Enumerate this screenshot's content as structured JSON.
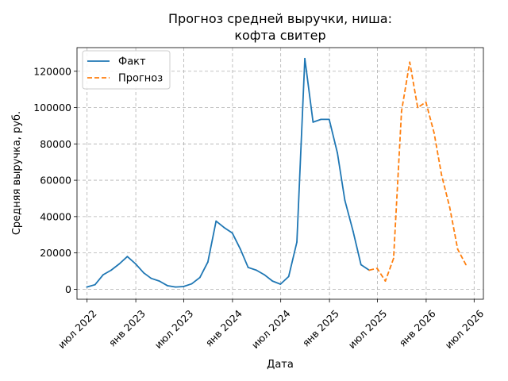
{
  "chart_data": {
    "type": "line",
    "title_lines": [
      "Прогноз средней выручки, ниша:",
      "кофта свитер"
    ],
    "xlabel": "Дата",
    "ylabel": "Средняя выручка, руб.",
    "x_ticks": [
      {
        "date": "2022-07-01",
        "label": "июл 2022"
      },
      {
        "date": "2023-01-01",
        "label": "янв 2023"
      },
      {
        "date": "2023-07-01",
        "label": "июл 2023"
      },
      {
        "date": "2024-01-01",
        "label": "янв 2024"
      },
      {
        "date": "2024-07-01",
        "label": "июл 2024"
      },
      {
        "date": "2025-01-01",
        "label": "янв 2025"
      },
      {
        "date": "2025-07-01",
        "label": "июл 2025"
      },
      {
        "date": "2026-01-01",
        "label": "янв 2026"
      },
      {
        "date": "2026-07-01",
        "label": "июл 2026"
      }
    ],
    "y_ticks": [
      0,
      20000,
      40000,
      60000,
      80000,
      100000,
      120000
    ],
    "xlim": [
      "2022-05-24",
      "2026-08-05"
    ],
    "ylim": [
      -5500,
      133000
    ],
    "grid": true,
    "legend_position": "top-left",
    "series": [
      {
        "name": "Факт",
        "color": "#1f77b4",
        "style": "solid",
        "points": [
          {
            "x": "2022-06-30",
            "y": 1200
          },
          {
            "x": "2022-07-31",
            "y": 2500
          },
          {
            "x": "2022-08-31",
            "y": 8000
          },
          {
            "x": "2022-09-30",
            "y": 10500
          },
          {
            "x": "2022-10-31",
            "y": 14000
          },
          {
            "x": "2022-11-30",
            "y": 18000
          },
          {
            "x": "2022-12-31",
            "y": 14000
          },
          {
            "x": "2023-01-31",
            "y": 9000
          },
          {
            "x": "2023-02-28",
            "y": 6000
          },
          {
            "x": "2023-03-31",
            "y": 4500
          },
          {
            "x": "2023-04-30",
            "y": 2000
          },
          {
            "x": "2023-05-31",
            "y": 1200
          },
          {
            "x": "2023-06-30",
            "y": 1500
          },
          {
            "x": "2023-07-31",
            "y": 3000
          },
          {
            "x": "2023-08-31",
            "y": 6500
          },
          {
            "x": "2023-09-30",
            "y": 15000
          },
          {
            "x": "2023-10-31",
            "y": 37500
          },
          {
            "x": "2023-11-30",
            "y": 34000
          },
          {
            "x": "2023-12-31",
            "y": 31000
          },
          {
            "x": "2024-01-31",
            "y": 22000
          },
          {
            "x": "2024-02-29",
            "y": 12000
          },
          {
            "x": "2024-03-31",
            "y": 10500
          },
          {
            "x": "2024-04-30",
            "y": 8000
          },
          {
            "x": "2024-05-31",
            "y": 4500
          },
          {
            "x": "2024-06-30",
            "y": 2800
          },
          {
            "x": "2024-07-31",
            "y": 7000
          },
          {
            "x": "2024-08-31",
            "y": 26000
          },
          {
            "x": "2024-09-30",
            "y": 127000
          },
          {
            "x": "2024-10-31",
            "y": 92000
          },
          {
            "x": "2024-11-30",
            "y": 93500
          },
          {
            "x": "2024-12-31",
            "y": 93500
          },
          {
            "x": "2025-01-31",
            "y": 75000
          },
          {
            "x": "2025-02-28",
            "y": 49000
          },
          {
            "x": "2025-03-31",
            "y": 32000
          },
          {
            "x": "2025-04-30",
            "y": 13500
          },
          {
            "x": "2025-05-31",
            "y": 10500
          }
        ]
      },
      {
        "name": "Прогноз",
        "color": "#ff7f0e",
        "style": "dashed",
        "points": [
          {
            "x": "2025-05-31",
            "y": 10500
          },
          {
            "x": "2025-06-30",
            "y": 11500
          },
          {
            "x": "2025-07-31",
            "y": 4500
          },
          {
            "x": "2025-08-31",
            "y": 17000
          },
          {
            "x": "2025-09-30",
            "y": 98000
          },
          {
            "x": "2025-10-31",
            "y": 125000
          },
          {
            "x": "2025-11-30",
            "y": 100000
          },
          {
            "x": "2025-12-31",
            "y": 103000
          },
          {
            "x": "2026-01-31",
            "y": 86000
          },
          {
            "x": "2026-02-28",
            "y": 63000
          },
          {
            "x": "2026-03-31",
            "y": 45000
          },
          {
            "x": "2026-04-30",
            "y": 22000
          },
          {
            "x": "2026-05-31",
            "y": 13500
          }
        ]
      }
    ]
  }
}
